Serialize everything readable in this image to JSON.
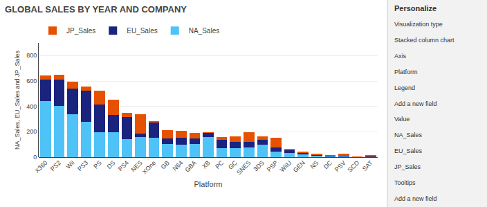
{
  "chart_data": {
    "type": "bar",
    "stacked": true,
    "title": "GLOBAL SALES BY YEAR AND COMPANY",
    "xlabel": "Platform",
    "ylabel": "NA_Sales, EU_Sales and JP_Sales",
    "categories": [
      "X360",
      "PS2",
      "Wii",
      "PS3",
      "PS",
      "DS",
      "PS4",
      "NES",
      "XOne",
      "GB",
      "N64",
      "GBA",
      "XB",
      "PC",
      "GC",
      "SNES",
      "3DS",
      "PSP",
      "WiiU",
      "GEN",
      "NS",
      "DC",
      "PSV",
      "SCD",
      "SAT"
    ],
    "series": [
      {
        "name": "NA_Sales",
        "color": "#4FC3F7",
        "values": [
          441,
          401,
          340,
          277,
          197,
          195,
          143,
          156,
          153,
          101,
          99,
          104,
          157,
          69,
          71,
          74,
          98,
          46,
          31,
          21,
          12,
          10,
          7,
          1,
          5
        ]
      },
      {
        "name": "EU_Sales",
        "color": "#1A237E",
        "values": [
          168,
          211,
          202,
          245,
          215,
          139,
          175,
          30,
          124,
          46,
          53,
          42,
          34,
          70,
          49,
          45,
          39,
          30,
          21,
          13,
          7,
          3,
          5,
          1,
          2
        ]
      },
      {
        "name": "JP_Sales",
        "color": "#E65100",
        "values": [
          36,
          38,
          50,
          36,
          111,
          117,
          33,
          150,
          5,
          68,
          57,
          45,
          4,
          17,
          43,
          76,
          24,
          77,
          12,
          7,
          5,
          2,
          15,
          2,
          10
        ]
      }
    ],
    "ylim": [
      0,
      900
    ],
    "yticks": [
      0,
      200,
      400,
      600,
      800
    ],
    "grid": true,
    "legend": "upper left",
    "annotations": [
      "Personalize",
      "Visualization type",
      "Stacked column chart",
      "Axis",
      "Platform",
      "Legend",
      "Add a new field",
      "Value",
      "NA_Sales",
      "EU_Sales",
      "JP_Sales",
      "Tooltips",
      "Add a new field"
    ]
  }
}
